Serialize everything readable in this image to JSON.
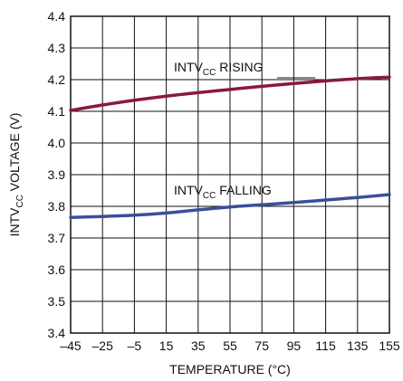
{
  "chart_data": {
    "type": "line",
    "xlabel": "TEMPERATURE (°C)",
    "ylabel": {
      "pre": "INTV",
      "sub": "CC",
      "post": " VOLTAGE (V)"
    },
    "xlim": [
      -45,
      155
    ],
    "ylim": [
      3.4,
      4.4
    ],
    "xticks": [
      -45,
      -25,
      -5,
      15,
      35,
      55,
      75,
      95,
      115,
      135,
      155
    ],
    "xtick_labels": [
      "–45",
      "–25",
      "–5",
      "15",
      "35",
      "55",
      "75",
      "95",
      "115",
      "135",
      "155"
    ],
    "yticks": [
      3.4,
      3.5,
      3.6,
      3.7,
      3.8,
      3.9,
      4.0,
      4.1,
      4.2,
      4.3,
      4.4
    ],
    "ytick_labels": [
      "3.4",
      "3.5",
      "3.6",
      "3.7",
      "3.8",
      "3.9",
      "4.0",
      "4.1",
      "4.2",
      "4.3",
      "4.4"
    ],
    "grid": true,
    "series": [
      {
        "label": {
          "pre": "INTV",
          "sub": "CC",
          "post": " RISING"
        },
        "color": "#8b1a3a",
        "x": [
          -45,
          -25,
          -5,
          15,
          35,
          55,
          75,
          95,
          115,
          135,
          155
        ],
        "y": [
          4.103,
          4.12,
          4.135,
          4.148,
          4.159,
          4.169,
          4.179,
          4.188,
          4.196,
          4.203,
          4.208
        ]
      },
      {
        "label": {
          "pre": "INTV",
          "sub": "CC",
          "post": " FALLING"
        },
        "color": "#3a4f9a",
        "x": [
          -45,
          -25,
          -5,
          15,
          35,
          55,
          75,
          95,
          115,
          135,
          155
        ],
        "y": [
          3.765,
          3.768,
          3.772,
          3.779,
          3.789,
          3.798,
          3.805,
          3.812,
          3.82,
          3.828,
          3.837
        ]
      }
    ]
  }
}
